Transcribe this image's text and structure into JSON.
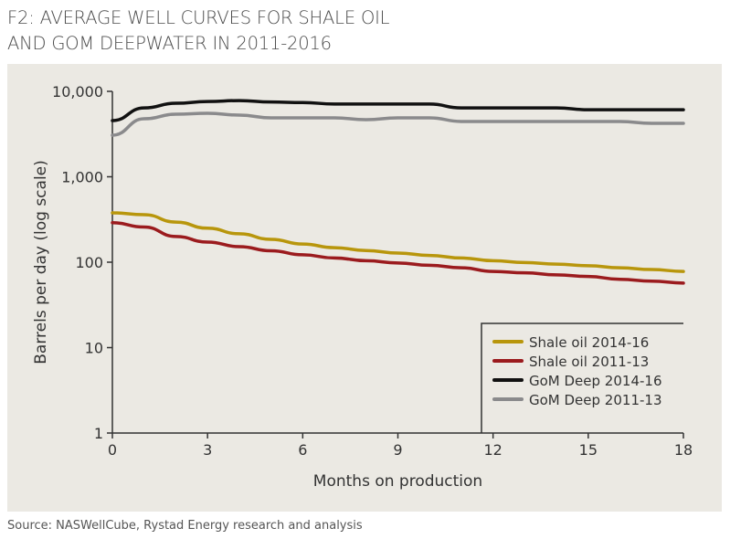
{
  "title_line1": "F2:  AVERAGE WELL CURVES FOR SHALE OIL",
  "title_line2": "AND GOM DEEPWATER IN 2011-2016",
  "source": "Source:  NASWellCube, Rystad Energy research and analysis",
  "chart_data": {
    "type": "line",
    "title": "F2:  AVERAGE WELL CURVES FOR SHALE OIL AND GOM DEEPWATER IN 2011-2016",
    "xlabel": "Months on production",
    "ylabel": "Barrels per day (log scale)",
    "xlim": [
      0,
      18
    ],
    "ylim": [
      1,
      10000
    ],
    "yscale": "log",
    "xticks": [
      0,
      3,
      6,
      9,
      12,
      15,
      18
    ],
    "xtick_labels": [
      "0",
      "3",
      "6",
      "9",
      "12",
      "15",
      "18"
    ],
    "yticks": [
      1,
      10,
      100,
      1000,
      10000
    ],
    "ytick_labels": [
      "1",
      "10",
      "100",
      "1,000",
      "10,000"
    ],
    "grid": false,
    "legend_position": "bottom-right",
    "x": [
      0,
      1,
      2,
      3,
      4,
      5,
      6,
      7,
      8,
      9,
      10,
      11,
      12,
      13,
      14,
      15,
      16,
      17,
      18
    ],
    "series": [
      {
        "name": "Shale oil 2014-16",
        "color": "#b8960c",
        "values": [
          378,
          360,
          295,
          250,
          215,
          185,
          163,
          148,
          137,
          128,
          120,
          112,
          104,
          99,
          95,
          91,
          86,
          82,
          78
        ]
      },
      {
        "name": "Shale oil 2011-13",
        "color": "#9b1b1e",
        "values": [
          290,
          258,
          200,
          172,
          152,
          136,
          122,
          112,
          104,
          98,
          92,
          86,
          78,
          75,
          71,
          68,
          63,
          60,
          57
        ]
      },
      {
        "name": "GoM Deep 2014-16",
        "color": "#111111",
        "values": [
          4550,
          6400,
          7260,
          7600,
          7800,
          7500,
          7400,
          7100,
          7100,
          7100,
          7100,
          6400,
          6400,
          6400,
          6400,
          6100,
          6100,
          6100,
          6100
        ]
      },
      {
        "name": "GoM Deep 2011-13",
        "color": "#8a8a8c",
        "values": [
          3070,
          4770,
          5400,
          5530,
          5270,
          4900,
          4900,
          4900,
          4660,
          4900,
          4900,
          4440,
          4440,
          4440,
          4440,
          4440,
          4440,
          4220,
          4220
        ]
      }
    ]
  }
}
